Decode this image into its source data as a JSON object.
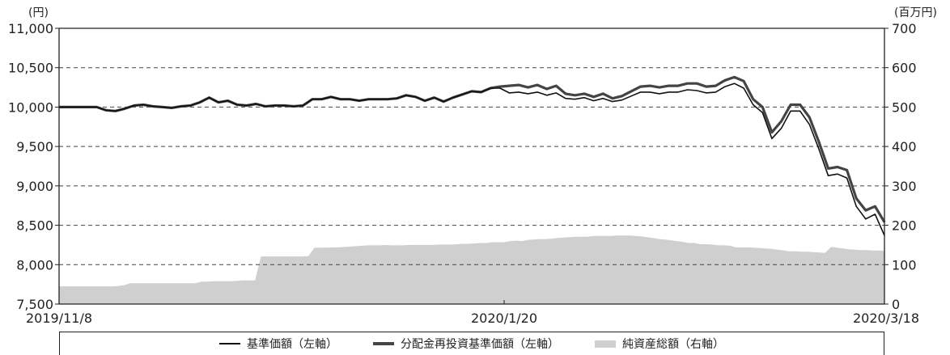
{
  "chart_data": {
    "type": "line",
    "left_unit": "(円)",
    "right_unit": "(百万円)",
    "left_ticks": [
      "11,000",
      "10,500",
      "10,000",
      "9,500",
      "9,000",
      "8,500",
      "8,000",
      "7,500"
    ],
    "right_ticks": [
      "700",
      "600",
      "500",
      "400",
      "300",
      "200",
      "100",
      "0"
    ],
    "x_tick_labels": [
      "2019/11/8",
      "2020/1/20",
      "2020/3/18"
    ],
    "ylim_left": [
      7500,
      11000
    ],
    "ylim_right": [
      0,
      700
    ],
    "grid": "dashed horizontal",
    "legend_position": "bottom",
    "series": [
      {
        "name": "基準価額（左軸）",
        "axis": "left",
        "style": "thin",
        "color": "#111111",
        "values": [
          10000,
          10000,
          10000,
          10000,
          10000,
          9960,
          9950,
          9980,
          10020,
          10030,
          10010,
          10000,
          9990,
          10010,
          10020,
          10060,
          10120,
          10060,
          10080,
          10030,
          10020,
          10040,
          10010,
          10020,
          10020,
          10010,
          10020,
          10100,
          10100,
          10130,
          10100,
          10100,
          10080,
          10100,
          10100,
          10100,
          10110,
          10150,
          10130,
          10080,
          10120,
          10070,
          10120,
          10160,
          10200,
          10190,
          10240,
          10240,
          10180,
          10190,
          10170,
          10190,
          10150,
          10180,
          10110,
          10100,
          10120,
          10080,
          10110,
          10070,
          10090,
          10140,
          10190,
          10190,
          10170,
          10190,
          10190,
          10220,
          10210,
          10180,
          10190,
          10260,
          10300,
          10240,
          10030,
          9930,
          9600,
          9730,
          9950,
          9950,
          9780,
          9470,
          9130,
          9150,
          9100,
          8740,
          8580,
          8640,
          8370
        ]
      },
      {
        "name": "分配金再投資基準価額（左軸）",
        "axis": "left",
        "style": "thick",
        "color": "#444444",
        "values": [
          10000,
          10000,
          10000,
          10000,
          10000,
          9960,
          9950,
          9980,
          10020,
          10030,
          10010,
          10000,
          9990,
          10010,
          10020,
          10060,
          10120,
          10060,
          10080,
          10030,
          10020,
          10040,
          10010,
          10020,
          10020,
          10010,
          10020,
          10100,
          10100,
          10130,
          10100,
          10100,
          10080,
          10100,
          10100,
          10100,
          10110,
          10150,
          10130,
          10080,
          10120,
          10070,
          10120,
          10160,
          10200,
          10190,
          10240,
          10260,
          10270,
          10280,
          10250,
          10280,
          10230,
          10270,
          10170,
          10150,
          10170,
          10130,
          10170,
          10110,
          10140,
          10200,
          10260,
          10270,
          10250,
          10270,
          10270,
          10300,
          10300,
          10260,
          10270,
          10340,
          10380,
          10330,
          10100,
          10000,
          9680,
          9820,
          10030,
          10030,
          9870,
          9560,
          9220,
          9240,
          9200,
          8840,
          8690,
          8740,
          8540
        ]
      },
      {
        "name": "純資産総額（右軸）",
        "axis": "right",
        "style": "area",
        "color": "#cfcfcf",
        "values": [
          45,
          45,
          45,
          45,
          45,
          45,
          45,
          45,
          45,
          45,
          46,
          48,
          53,
          53,
          53,
          53,
          53,
          53,
          53,
          53,
          53,
          53,
          53,
          53,
          57,
          57,
          58,
          58,
          58,
          58,
          59,
          60,
          60,
          60,
          121,
          121,
          121,
          121,
          121,
          121,
          121,
          121,
          122,
          143,
          143,
          143,
          144,
          144,
          145,
          146,
          147,
          148,
          149,
          149,
          149,
          150,
          149,
          149,
          149,
          150,
          150,
          150,
          150,
          150,
          151,
          151,
          151,
          152,
          153,
          153,
          154,
          155,
          155,
          157,
          157,
          157,
          160,
          161,
          160,
          163,
          164,
          165,
          165,
          166,
          168,
          169,
          170,
          171,
          171,
          171,
          173,
          173,
          173,
          173,
          174,
          174,
          174,
          173,
          172,
          170,
          168,
          165,
          164,
          162,
          160,
          158,
          155,
          155,
          152,
          152,
          151,
          149,
          149,
          148,
          144,
          144,
          144,
          143,
          142,
          141,
          140,
          138,
          136,
          134,
          134,
          133,
          133,
          132,
          131,
          130,
          145,
          143,
          141,
          139,
          138,
          137,
          137,
          136,
          136,
          135
        ]
      }
    ]
  },
  "legend": {
    "item1": "基準価額（左軸）",
    "item2": "分配金再投資基準価額（左軸）",
    "item3": "純資産総額（右軸）"
  }
}
